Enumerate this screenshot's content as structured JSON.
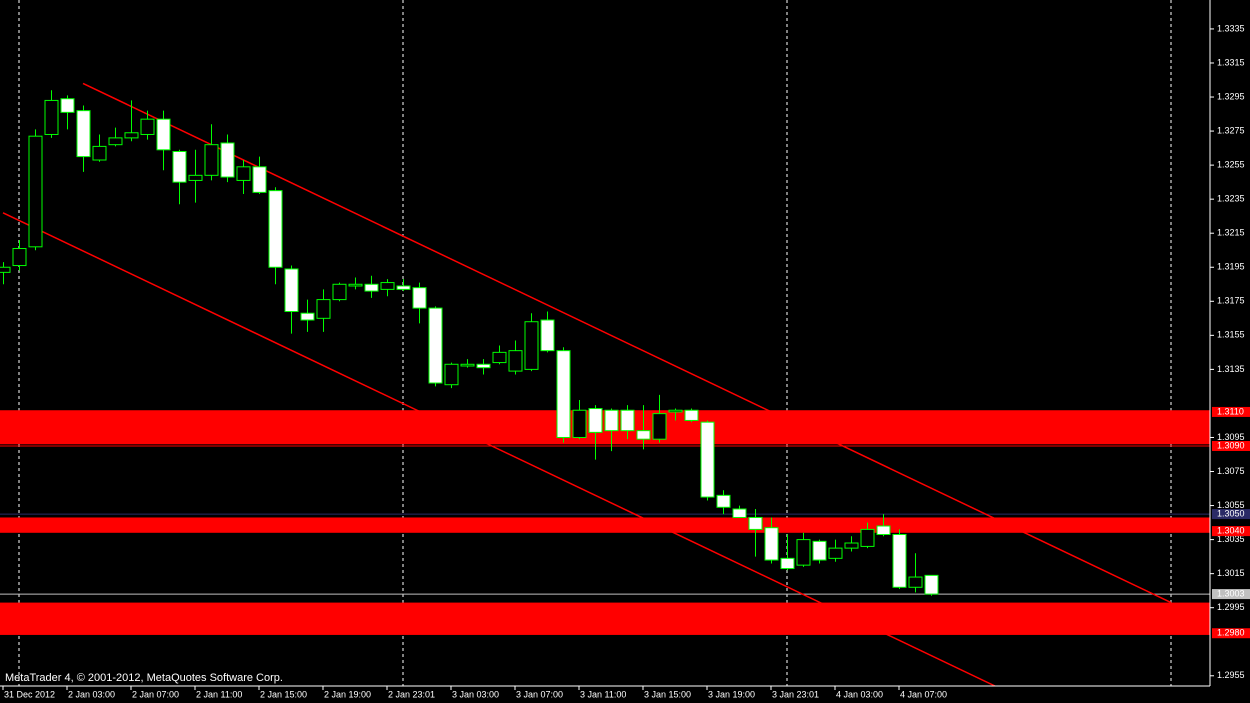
{
  "chart_data": {
    "type": "candlestick",
    "watermark": "MetaTrader 4, © 2001-2012, MetaQuotes Software Corp.",
    "categories": [
      "31 Dec 2012",
      null,
      null,
      null,
      "2 Jan 03:00",
      null,
      null,
      null,
      "2 Jan 07:00",
      null,
      null,
      null,
      "2 Jan 11:00",
      null,
      null,
      null,
      "2 Jan 15:00",
      null,
      null,
      null,
      "2 Jan 19:00",
      null,
      null,
      null,
      "2 Jan 23:01",
      null,
      null,
      null,
      "3 Jan 03:00",
      null,
      null,
      null,
      "3 Jan 07:00",
      null,
      null,
      null,
      "3 Jan 11:00",
      null,
      null,
      null,
      "3 Jan 15:00",
      null,
      null,
      null,
      "3 Jan 19:00",
      null,
      null,
      null,
      "3 Jan 23:01",
      null,
      null,
      null,
      "4 Jan 03:00",
      null,
      null,
      null,
      "4 Jan 07:00",
      null,
      null
    ],
    "open": [
      1.3192,
      1.3196,
      1.3207,
      1.3273,
      1.3294,
      1.3287,
      1.3258,
      1.3267,
      1.3271,
      1.3273,
      1.3282,
      1.3263,
      1.3246,
      1.3249,
      1.3268,
      1.3246,
      1.3254,
      1.324,
      1.3194,
      1.3168,
      1.3165,
      1.3176,
      1.3184,
      1.3185,
      1.3182,
      1.3184,
      1.3183,
      1.3171,
      1.3126,
      1.3137,
      1.3138,
      1.3139,
      1.3134,
      1.3135,
      1.3164,
      1.3146,
      1.3095,
      1.3112,
      1.3111,
      1.3111,
      1.3099,
      1.3094,
      1.311,
      1.3111,
      1.3104,
      1.3061,
      1.3053,
      1.3048,
      1.3042,
      1.3024,
      1.302,
      1.3034,
      1.3024,
      1.303,
      1.3031,
      1.3043,
      1.3038,
      1.3007,
      1.3014
    ],
    "high": [
      1.3198,
      1.3211,
      1.3276,
      1.3299,
      1.3296,
      1.329,
      1.3273,
      1.3277,
      1.3293,
      1.3287,
      1.3287,
      1.3264,
      1.3264,
      1.3279,
      1.3273,
      1.3258,
      1.326,
      1.3242,
      1.3196,
      1.3176,
      1.3182,
      1.3186,
      1.3189,
      1.319,
      1.3188,
      1.3188,
      1.3186,
      1.3172,
      1.3139,
      1.3141,
      1.3141,
      1.3149,
      1.3152,
      1.3168,
      1.3169,
      1.3148,
      1.3117,
      1.3114,
      1.3112,
      1.3114,
      1.3114,
      1.312,
      1.3112,
      1.3112,
      1.3105,
      1.3064,
      1.3055,
      1.3053,
      1.3048,
      1.3038,
      1.3039,
      1.3035,
      1.3035,
      1.3037,
      1.3045,
      1.305,
      1.3041,
      1.3027,
      1.3014
    ],
    "low": [
      1.3185,
      1.3193,
      1.3205,
      1.3271,
      1.3276,
      1.3251,
      1.3257,
      1.3266,
      1.3269,
      1.327,
      1.3252,
      1.3232,
      1.3233,
      1.3246,
      1.3245,
      1.3238,
      1.3238,
      1.3185,
      1.3156,
      1.3157,
      1.3157,
      1.3175,
      1.3182,
      1.3177,
      1.3178,
      1.3181,
      1.3162,
      1.3125,
      1.3124,
      1.3136,
      1.3132,
      1.3138,
      1.3132,
      1.3134,
      1.3145,
      1.3092,
      1.3094,
      1.3082,
      1.3087,
      1.3094,
      1.3088,
      1.3092,
      1.3105,
      1.3104,
      1.3058,
      1.305,
      1.3048,
      1.3025,
      1.3021,
      1.3017,
      1.3019,
      1.3021,
      1.3022,
      1.3028,
      1.303,
      1.3037,
      1.3006,
      1.3004,
      1.3002
    ],
    "close": [
      1.3195,
      1.3206,
      1.3272,
      1.3293,
      1.3286,
      1.326,
      1.3266,
      1.3271,
      1.3274,
      1.3282,
      1.3264,
      1.3245,
      1.3249,
      1.3267,
      1.3248,
      1.3254,
      1.3239,
      1.3195,
      1.3169,
      1.3164,
      1.3176,
      1.3185,
      1.3185,
      1.3181,
      1.3186,
      1.3182,
      1.3171,
      1.3127,
      1.3138,
      1.3138,
      1.3136,
      1.3145,
      1.3146,
      1.3163,
      1.3146,
      1.3095,
      1.3111,
      1.3098,
      1.3099,
      1.3099,
      1.3094,
      1.3109,
      1.3111,
      1.3105,
      1.306,
      1.3054,
      1.3048,
      1.3041,
      1.3023,
      1.3018,
      1.3035,
      1.3023,
      1.303,
      1.3033,
      1.3041,
      1.3038,
      1.3007,
      1.3013,
      1.3003
    ],
    "up_color": "#000000",
    "down_color": "#ffffff",
    "outline_color": "#00ff00",
    "ylim": [
      1.2949,
      1.3352
    ],
    "yticks": [
      1.3335,
      1.3315,
      1.3295,
      1.3275,
      1.3255,
      1.3235,
      1.3215,
      1.3195,
      1.3175,
      1.3155,
      1.3135,
      1.3095,
      1.3075,
      1.3055,
      1.3035,
      1.3015,
      1.2995,
      1.2955
    ],
    "zones": [
      {
        "top": 1.3111,
        "bottom": 1.3091,
        "color": "#ff0000"
      },
      {
        "top": 1.3048,
        "bottom": 1.3039,
        "color": "#ff0000"
      },
      {
        "top": 1.2998,
        "bottom": 1.2979,
        "color": "#ff0000"
      }
    ],
    "levels": [
      {
        "value": 1.311,
        "label": "1.3110",
        "color": "#ff0000"
      },
      {
        "value": 1.309,
        "label": "1.3090",
        "color": "#ff0000"
      },
      {
        "value": 1.305,
        "label": "1.3050",
        "color": "#2a2a66"
      },
      {
        "value": 1.304,
        "label": "1.3040",
        "color": "#ff0000"
      },
      {
        "value": 1.3003,
        "label": "1.3003",
        "color": "#c0c0c0"
      },
      {
        "value": 1.298,
        "label": "1.2980",
        "color": "#ff0000"
      }
    ],
    "trendlines": [
      {
        "x": [
          5,
          73
        ],
        "y": [
          1.3303,
          1.2998
        ],
        "color": "#ff0000"
      },
      {
        "x": [
          0,
          62
        ],
        "y": [
          1.3227,
          1.2949
        ],
        "color": "#ff0000"
      }
    ],
    "period_separators": [
      1,
      25,
      49,
      73
    ]
  }
}
